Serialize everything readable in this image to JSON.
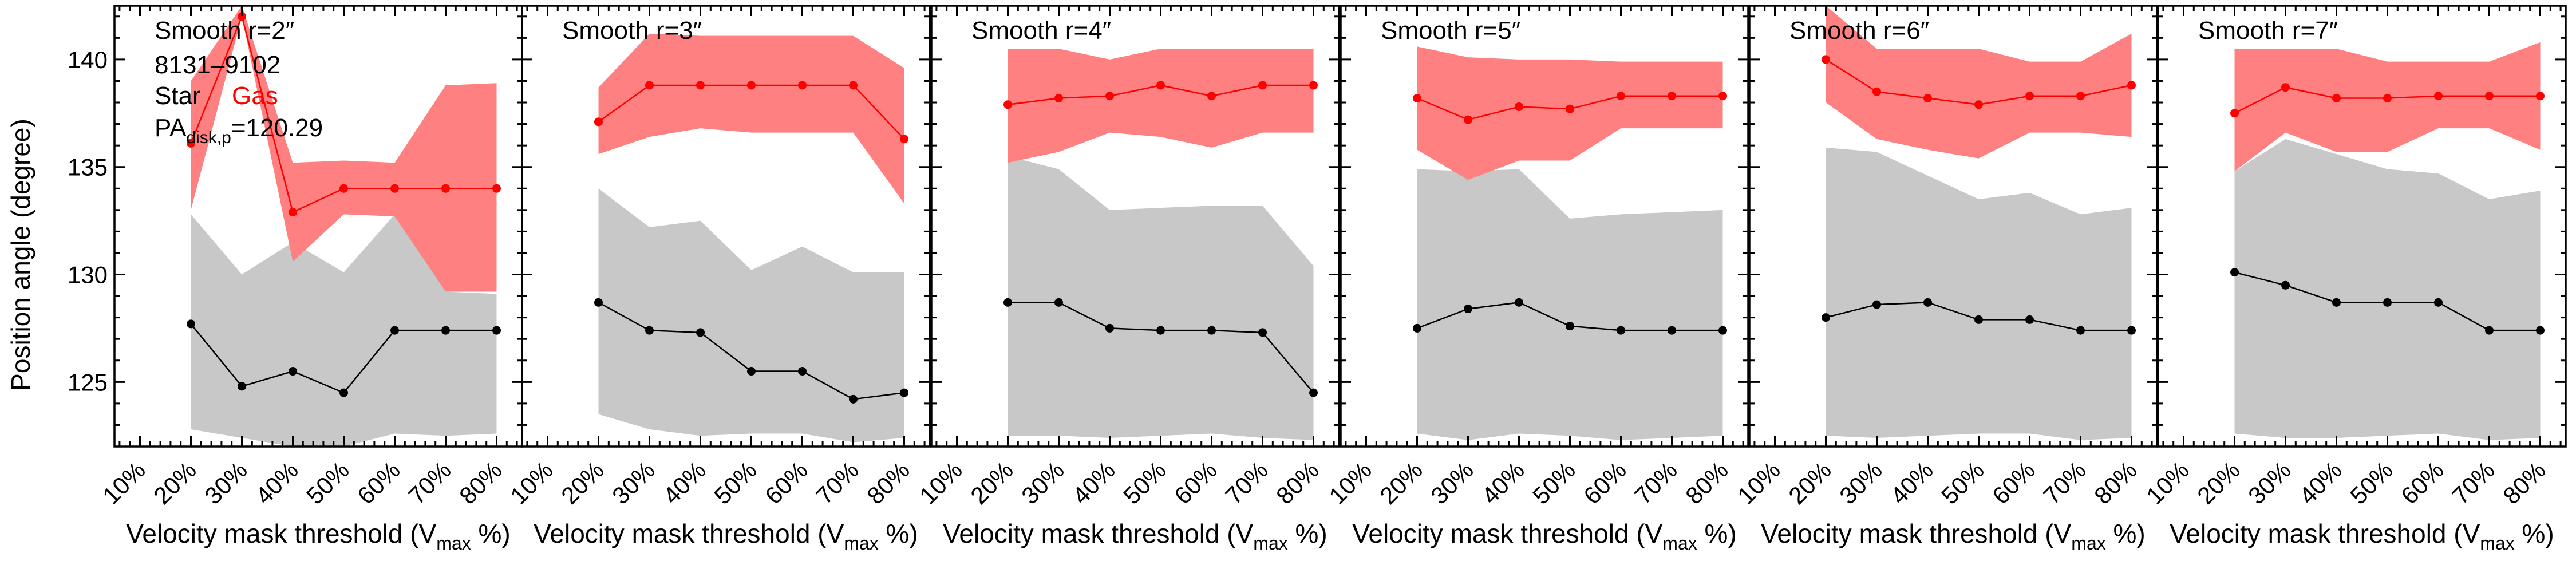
{
  "colors": {
    "star": "#000000",
    "gas": "#ff0000",
    "star_band": "#c8c8c8",
    "gas_band": "#ff8080"
  },
  "shared": {
    "ylabel": "Position angle (degree)",
    "xlabel_main": "Velocity mask threshold (V",
    "xlabel_sub": "max",
    "xlabel_tail": " %)"
  },
  "annotations": {
    "galaxy_id": "8131–9102",
    "legend_star": "Star",
    "legend_gas": "Gas",
    "pa_prefix": "PA",
    "pa_sub": "disk,p",
    "pa_value": "=120.29"
  },
  "chart_data": [
    {
      "type": "line",
      "title": "Smooth r=2″",
      "x_ticks": [
        "10%",
        "20%",
        "30%",
        "40%",
        "50%",
        "60%",
        "70%",
        "80%"
      ],
      "y_ticks": [
        125,
        130,
        135,
        140
      ],
      "xlim": [
        5,
        85
      ],
      "ylim": [
        122,
        142.5
      ],
      "x": [
        20,
        30,
        40,
        50,
        60,
        70,
        80
      ],
      "series": [
        {
          "name": "Star",
          "values": [
            127.7,
            124.8,
            125.5,
            124.5,
            127.4,
            127.4,
            127.4
          ],
          "band_low": [
            122.8,
            122.4,
            122.0,
            122.0,
            122.6,
            122.5,
            122.6
          ],
          "band_high": [
            132.8,
            130.0,
            131.5,
            130.1,
            132.8,
            129.2,
            129.1
          ]
        },
        {
          "name": "Gas",
          "values": [
            136.1,
            142.0,
            132.9,
            134.0,
            134.0,
            134.0,
            134.0
          ],
          "band_low": [
            133.0,
            142.0,
            130.6,
            132.8,
            132.7,
            129.2,
            129.2
          ],
          "band_high": [
            139.0,
            142.5,
            135.2,
            135.3,
            135.2,
            138.8,
            138.9
          ]
        }
      ]
    },
    {
      "type": "line",
      "title": "Smooth r=3″",
      "x_ticks": [
        "10%",
        "20%",
        "30%",
        "40%",
        "50%",
        "60%",
        "70%",
        "80%"
      ],
      "y_ticks": [
        125,
        130,
        135,
        140
      ],
      "xlim": [
        5,
        85
      ],
      "ylim": [
        122,
        142.5
      ],
      "x": [
        20,
        30,
        40,
        50,
        60,
        70,
        80
      ],
      "series": [
        {
          "name": "Star",
          "values": [
            128.7,
            127.4,
            127.3,
            125.5,
            125.5,
            124.2,
            124.5
          ],
          "band_low": [
            123.5,
            122.8,
            122.5,
            122.6,
            122.6,
            122.2,
            122.4
          ],
          "band_high": [
            134.0,
            132.2,
            132.5,
            130.2,
            131.3,
            130.1,
            130.1
          ]
        },
        {
          "name": "Gas",
          "values": [
            137.1,
            138.8,
            138.8,
            138.8,
            138.8,
            138.8,
            136.3
          ],
          "band_low": [
            135.6,
            136.4,
            136.8,
            136.6,
            136.6,
            136.6,
            133.3
          ],
          "band_high": [
            138.7,
            141.2,
            141.1,
            141.1,
            141.1,
            141.1,
            139.6
          ]
        }
      ]
    },
    {
      "type": "line",
      "title": "Smooth r=4″",
      "x_ticks": [
        "10%",
        "20%",
        "30%",
        "40%",
        "50%",
        "60%",
        "70%",
        "80%"
      ],
      "y_ticks": [
        125,
        130,
        135,
        140
      ],
      "xlim": [
        5,
        85
      ],
      "ylim": [
        122,
        142.5
      ],
      "x": [
        20,
        30,
        40,
        50,
        60,
        70,
        80
      ],
      "series": [
        {
          "name": "Star",
          "values": [
            128.7,
            128.7,
            127.5,
            127.4,
            127.4,
            127.3,
            124.5
          ],
          "band_low": [
            122.5,
            122.5,
            122.4,
            122.5,
            122.6,
            122.4,
            122.3
          ],
          "band_high": [
            135.5,
            134.9,
            133.0,
            133.1,
            133.2,
            133.2,
            130.4
          ]
        },
        {
          "name": "Gas",
          "values": [
            137.9,
            138.2,
            138.3,
            138.8,
            138.3,
            138.8,
            138.8
          ],
          "band_low": [
            135.2,
            135.7,
            136.6,
            136.4,
            135.9,
            136.6,
            136.6
          ],
          "band_high": [
            140.5,
            140.5,
            140.0,
            140.5,
            140.5,
            140.5,
            140.5
          ]
        }
      ]
    },
    {
      "type": "line",
      "title": "Smooth r=5″",
      "x_ticks": [
        "10%",
        "20%",
        "30%",
        "40%",
        "50%",
        "60%",
        "70%",
        "80%"
      ],
      "y_ticks": [
        125,
        130,
        135,
        140
      ],
      "xlim": [
        5,
        85
      ],
      "ylim": [
        122,
        142.5
      ],
      "x": [
        20,
        30,
        40,
        50,
        60,
        70,
        80
      ],
      "series": [
        {
          "name": "Star",
          "values": [
            127.5,
            128.4,
            128.7,
            127.6,
            127.4,
            127.4,
            127.4
          ],
          "band_low": [
            122.6,
            122.3,
            122.6,
            122.5,
            122.3,
            122.4,
            122.5
          ],
          "band_high": [
            134.9,
            134.8,
            134.9,
            132.6,
            132.8,
            132.9,
            133.0
          ]
        },
        {
          "name": "Gas",
          "values": [
            138.2,
            137.2,
            137.8,
            137.7,
            138.3,
            138.3,
            138.3
          ],
          "band_low": [
            135.8,
            134.4,
            135.3,
            135.3,
            136.8,
            136.8,
            136.8
          ],
          "band_high": [
            140.6,
            140.1,
            140.0,
            140.0,
            139.9,
            139.9,
            139.9
          ]
        }
      ]
    },
    {
      "type": "line",
      "title": "Smooth r=6″",
      "x_ticks": [
        "10%",
        "20%",
        "30%",
        "40%",
        "50%",
        "60%",
        "70%",
        "80%"
      ],
      "y_ticks": [
        125,
        130,
        135,
        140
      ],
      "xlim": [
        5,
        85
      ],
      "ylim": [
        122,
        142.5
      ],
      "x": [
        20,
        30,
        40,
        50,
        60,
        70,
        80
      ],
      "series": [
        {
          "name": "Star",
          "values": [
            128.0,
            128.6,
            128.7,
            127.9,
            127.9,
            127.4,
            127.4
          ],
          "band_low": [
            122.5,
            122.4,
            122.5,
            122.6,
            122.6,
            122.3,
            122.4
          ],
          "band_high": [
            135.9,
            135.7,
            134.6,
            133.5,
            133.8,
            132.8,
            133.1
          ]
        },
        {
          "name": "Gas",
          "values": [
            140.0,
            138.5,
            138.2,
            137.9,
            138.3,
            138.3,
            138.8
          ],
          "band_low": [
            138.0,
            136.3,
            135.8,
            135.4,
            136.6,
            136.6,
            136.4
          ],
          "band_high": [
            142.5,
            140.5,
            140.5,
            140.5,
            139.9,
            139.9,
            141.2
          ]
        }
      ]
    },
    {
      "type": "line",
      "title": "Smooth r=7″",
      "x_ticks": [
        "10%",
        "20%",
        "30%",
        "40%",
        "50%",
        "60%",
        "70%",
        "80%"
      ],
      "y_ticks": [
        125,
        130,
        135,
        140
      ],
      "xlim": [
        5,
        85
      ],
      "ylim": [
        122,
        142.5
      ],
      "x": [
        20,
        30,
        40,
        50,
        60,
        70,
        80
      ],
      "series": [
        {
          "name": "Star",
          "values": [
            130.1,
            129.5,
            128.7,
            128.7,
            128.7,
            127.4,
            127.4
          ],
          "band_low": [
            122.6,
            122.4,
            122.4,
            122.5,
            122.6,
            122.3,
            122.4
          ],
          "band_high": [
            134.8,
            136.3,
            135.6,
            134.9,
            134.7,
            133.5,
            133.9
          ]
        },
        {
          "name": "Gas",
          "values": [
            137.5,
            138.7,
            138.2,
            138.2,
            138.3,
            138.3,
            138.3
          ],
          "band_low": [
            134.8,
            136.6,
            135.7,
            135.7,
            136.8,
            136.8,
            135.8
          ],
          "band_high": [
            140.5,
            140.5,
            140.5,
            139.9,
            139.9,
            139.9,
            140.8
          ]
        }
      ]
    }
  ]
}
